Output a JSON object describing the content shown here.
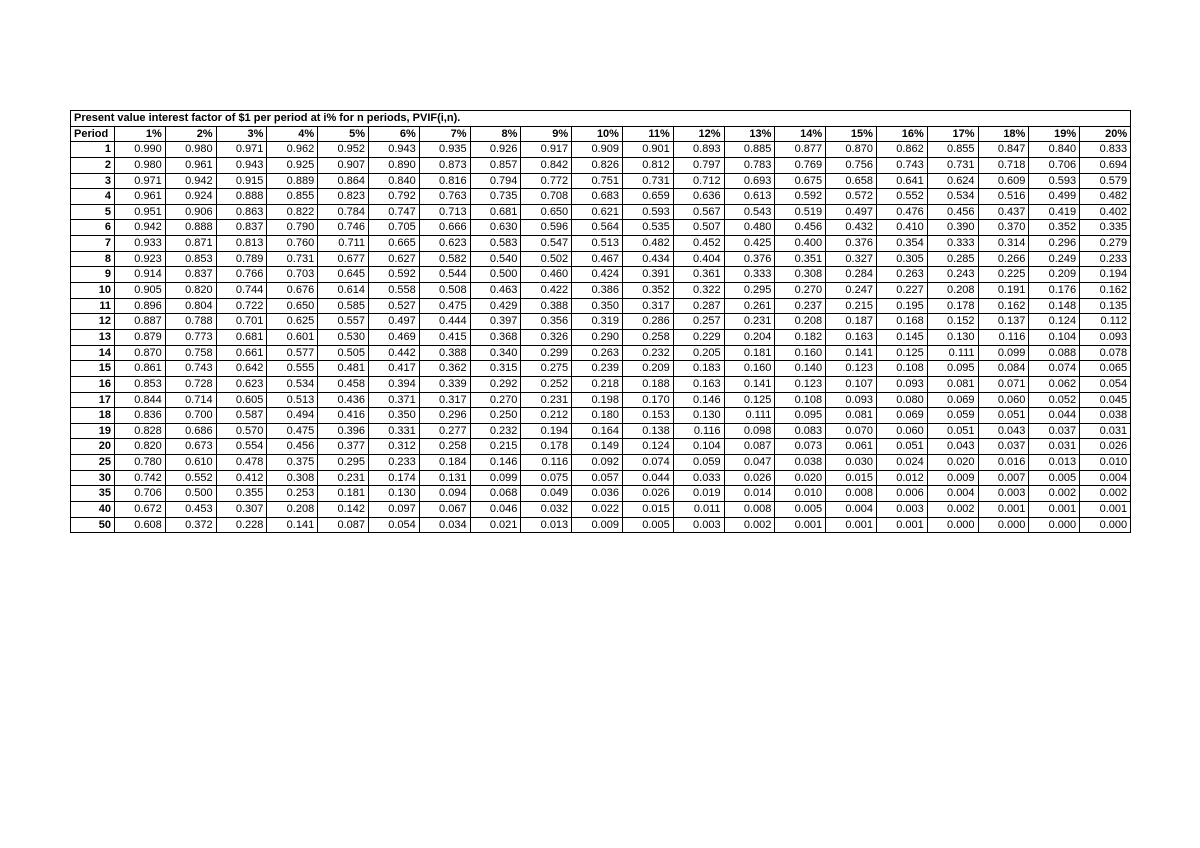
{
  "table": {
    "type": "table",
    "title": "Present value interest factor of $1 per period at i% for n periods, PVIF(i,n).",
    "period_header": "Period",
    "columns": [
      "1%",
      "2%",
      "3%",
      "4%",
      "5%",
      "6%",
      "7%",
      "8%",
      "9%",
      "10%",
      "11%",
      "12%",
      "13%",
      "14%",
      "15%",
      "16%",
      "17%",
      "18%",
      "19%",
      "20%"
    ],
    "periods": [
      "1",
      "2",
      "3",
      "4",
      "5",
      "6",
      "7",
      "8",
      "9",
      "10",
      "11",
      "12",
      "13",
      "14",
      "15",
      "16",
      "17",
      "18",
      "19",
      "20",
      "25",
      "30",
      "35",
      "40",
      "50"
    ],
    "rows": [
      [
        "0.990",
        "0.980",
        "0.971",
        "0.962",
        "0.952",
        "0.943",
        "0.935",
        "0.926",
        "0.917",
        "0.909",
        "0.901",
        "0.893",
        "0.885",
        "0.877",
        "0.870",
        "0.862",
        "0.855",
        "0.847",
        "0.840",
        "0.833"
      ],
      [
        "0.980",
        "0.961",
        "0.943",
        "0.925",
        "0.907",
        "0.890",
        "0.873",
        "0.857",
        "0.842",
        "0.826",
        "0.812",
        "0.797",
        "0.783",
        "0.769",
        "0.756",
        "0.743",
        "0.731",
        "0.718",
        "0.706",
        "0.694"
      ],
      [
        "0.971",
        "0.942",
        "0.915",
        "0.889",
        "0.864",
        "0.840",
        "0.816",
        "0.794",
        "0.772",
        "0.751",
        "0.731",
        "0.712",
        "0.693",
        "0.675",
        "0.658",
        "0.641",
        "0.624",
        "0.609",
        "0.593",
        "0.579"
      ],
      [
        "0.961",
        "0.924",
        "0.888",
        "0.855",
        "0.823",
        "0.792",
        "0.763",
        "0.735",
        "0.708",
        "0.683",
        "0.659",
        "0.636",
        "0.613",
        "0.592",
        "0.572",
        "0.552",
        "0.534",
        "0.516",
        "0.499",
        "0.482"
      ],
      [
        "0.951",
        "0.906",
        "0.863",
        "0.822",
        "0.784",
        "0.747",
        "0.713",
        "0.681",
        "0.650",
        "0.621",
        "0.593",
        "0.567",
        "0.543",
        "0.519",
        "0.497",
        "0.476",
        "0.456",
        "0.437",
        "0.419",
        "0.402"
      ],
      [
        "0.942",
        "0.888",
        "0.837",
        "0.790",
        "0.746",
        "0.705",
        "0.666",
        "0.630",
        "0.596",
        "0.564",
        "0.535",
        "0.507",
        "0.480",
        "0.456",
        "0.432",
        "0.410",
        "0.390",
        "0.370",
        "0.352",
        "0.335"
      ],
      [
        "0.933",
        "0.871",
        "0.813",
        "0.760",
        "0.711",
        "0.665",
        "0.623",
        "0.583",
        "0.547",
        "0.513",
        "0.482",
        "0.452",
        "0.425",
        "0.400",
        "0.376",
        "0.354",
        "0.333",
        "0.314",
        "0.296",
        "0.279"
      ],
      [
        "0.923",
        "0.853",
        "0.789",
        "0.731",
        "0.677",
        "0.627",
        "0.582",
        "0.540",
        "0.502",
        "0.467",
        "0.434",
        "0.404",
        "0.376",
        "0.351",
        "0.327",
        "0.305",
        "0.285",
        "0.266",
        "0.249",
        "0.233"
      ],
      [
        "0.914",
        "0.837",
        "0.766",
        "0.703",
        "0.645",
        "0.592",
        "0.544",
        "0.500",
        "0.460",
        "0.424",
        "0.391",
        "0.361",
        "0.333",
        "0.308",
        "0.284",
        "0.263",
        "0.243",
        "0.225",
        "0.209",
        "0.194"
      ],
      [
        "0.905",
        "0.820",
        "0.744",
        "0.676",
        "0.614",
        "0.558",
        "0.508",
        "0.463",
        "0.422",
        "0.386",
        "0.352",
        "0.322",
        "0.295",
        "0.270",
        "0.247",
        "0.227",
        "0.208",
        "0.191",
        "0.176",
        "0.162"
      ],
      [
        "0.896",
        "0.804",
        "0.722",
        "0.650",
        "0.585",
        "0.527",
        "0.475",
        "0.429",
        "0.388",
        "0.350",
        "0.317",
        "0.287",
        "0.261",
        "0.237",
        "0.215",
        "0.195",
        "0.178",
        "0.162",
        "0.148",
        "0.135"
      ],
      [
        "0.887",
        "0.788",
        "0.701",
        "0.625",
        "0.557",
        "0.497",
        "0.444",
        "0.397",
        "0.356",
        "0.319",
        "0.286",
        "0.257",
        "0.231",
        "0.208",
        "0.187",
        "0.168",
        "0.152",
        "0.137",
        "0.124",
        "0.112"
      ],
      [
        "0.879",
        "0.773",
        "0.681",
        "0.601",
        "0.530",
        "0.469",
        "0.415",
        "0.368",
        "0.326",
        "0.290",
        "0.258",
        "0.229",
        "0.204",
        "0.182",
        "0.163",
        "0.145",
        "0.130",
        "0.116",
        "0.104",
        "0.093"
      ],
      [
        "0.870",
        "0.758",
        "0.661",
        "0.577",
        "0.505",
        "0.442",
        "0.388",
        "0.340",
        "0.299",
        "0.263",
        "0.232",
        "0.205",
        "0.181",
        "0.160",
        "0.141",
        "0.125",
        "0.111",
        "0.099",
        "0.088",
        "0.078"
      ],
      [
        "0.861",
        "0.743",
        "0.642",
        "0.555",
        "0.481",
        "0.417",
        "0.362",
        "0.315",
        "0.275",
        "0.239",
        "0.209",
        "0.183",
        "0.160",
        "0.140",
        "0.123",
        "0.108",
        "0.095",
        "0.084",
        "0.074",
        "0.065"
      ],
      [
        "0.853",
        "0.728",
        "0.623",
        "0.534",
        "0.458",
        "0.394",
        "0.339",
        "0.292",
        "0.252",
        "0.218",
        "0.188",
        "0.163",
        "0.141",
        "0.123",
        "0.107",
        "0.093",
        "0.081",
        "0.071",
        "0.062",
        "0.054"
      ],
      [
        "0.844",
        "0.714",
        "0.605",
        "0.513",
        "0.436",
        "0.371",
        "0.317",
        "0.270",
        "0.231",
        "0.198",
        "0.170",
        "0.146",
        "0.125",
        "0.108",
        "0.093",
        "0.080",
        "0.069",
        "0.060",
        "0.052",
        "0.045"
      ],
      [
        "0.836",
        "0.700",
        "0.587",
        "0.494",
        "0.416",
        "0.350",
        "0.296",
        "0.250",
        "0.212",
        "0.180",
        "0.153",
        "0.130",
        "0.111",
        "0.095",
        "0.081",
        "0.069",
        "0.059",
        "0.051",
        "0.044",
        "0.038"
      ],
      [
        "0.828",
        "0.686",
        "0.570",
        "0.475",
        "0.396",
        "0.331",
        "0.277",
        "0.232",
        "0.194",
        "0.164",
        "0.138",
        "0.116",
        "0.098",
        "0.083",
        "0.070",
        "0.060",
        "0.051",
        "0.043",
        "0.037",
        "0.031"
      ],
      [
        "0.820",
        "0.673",
        "0.554",
        "0.456",
        "0.377",
        "0.312",
        "0.258",
        "0.215",
        "0.178",
        "0.149",
        "0.124",
        "0.104",
        "0.087",
        "0.073",
        "0.061",
        "0.051",
        "0.043",
        "0.037",
        "0.031",
        "0.026"
      ],
      [
        "0.780",
        "0.610",
        "0.478",
        "0.375",
        "0.295",
        "0.233",
        "0.184",
        "0.146",
        "0.116",
        "0.092",
        "0.074",
        "0.059",
        "0.047",
        "0.038",
        "0.030",
        "0.024",
        "0.020",
        "0.016",
        "0.013",
        "0.010"
      ],
      [
        "0.742",
        "0.552",
        "0.412",
        "0.308",
        "0.231",
        "0.174",
        "0.131",
        "0.099",
        "0.075",
        "0.057",
        "0.044",
        "0.033",
        "0.026",
        "0.020",
        "0.015",
        "0.012",
        "0.009",
        "0.007",
        "0.005",
        "0.004"
      ],
      [
        "0.706",
        "0.500",
        "0.355",
        "0.253",
        "0.181",
        "0.130",
        "0.094",
        "0.068",
        "0.049",
        "0.036",
        "0.026",
        "0.019",
        "0.014",
        "0.010",
        "0.008",
        "0.006",
        "0.004",
        "0.003",
        "0.002",
        "0.002"
      ],
      [
        "0.672",
        "0.453",
        "0.307",
        "0.208",
        "0.142",
        "0.097",
        "0.067",
        "0.046",
        "0.032",
        "0.022",
        "0.015",
        "0.011",
        "0.008",
        "0.005",
        "0.004",
        "0.003",
        "0.002",
        "0.001",
        "0.001",
        "0.001"
      ],
      [
        "0.608",
        "0.372",
        "0.228",
        "0.141",
        "0.087",
        "0.054",
        "0.034",
        "0.021",
        "0.013",
        "0.009",
        "0.005",
        "0.003",
        "0.002",
        "0.001",
        "0.001",
        "0.001",
        "0.000",
        "0.000",
        "0.000",
        "0.000"
      ]
    ],
    "styling": {
      "border_color": "#000000",
      "background_color": "#ffffff",
      "font_family": "Arial",
      "font_size_pt": 8,
      "header_font_weight": "bold",
      "cell_text_align": "right",
      "title_text_align": "left"
    }
  }
}
